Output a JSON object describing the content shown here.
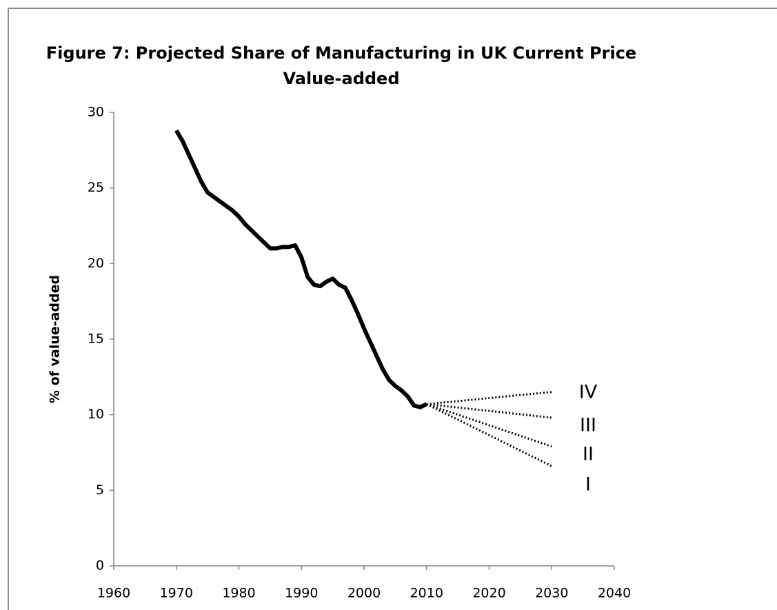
{
  "chart_data": {
    "type": "line",
    "title": [
      "Figure 7: Projected Share of Manufacturing in UK Current Price",
      "Value-added"
    ],
    "y_label": "% of value-added",
    "xlim": [
      1960,
      2040
    ],
    "xticks": [
      1960,
      1970,
      1980,
      1990,
      2000,
      2010,
      2020,
      2030,
      2040
    ],
    "ylim": [
      0,
      30
    ],
    "yticks": [
      0,
      5,
      10,
      15,
      20,
      25,
      30
    ],
    "grid": false,
    "series": [
      {
        "color": "#000000",
        "style": "solid",
        "x": [
          1970,
          1971,
          1972,
          1973,
          1974,
          1975,
          1976,
          1977,
          1978,
          1979,
          1980,
          1981,
          1982,
          1983,
          1984,
          1985,
          1986,
          1987,
          1988,
          1989,
          1990,
          1991,
          1992,
          1993,
          1994,
          1995,
          1996,
          1997,
          1998,
          1999,
          2000,
          2001,
          2002,
          2003,
          2004,
          2005,
          2006,
          2007,
          2008,
          2009,
          2010
        ],
        "values": [
          28.8,
          28.1,
          27.2,
          26.3,
          25.4,
          24.7,
          24.4,
          24.1,
          23.8,
          23.5,
          23.1,
          22.6,
          22.2,
          21.8,
          21.4,
          21.0,
          21.0,
          21.1,
          21.1,
          21.2,
          20.4,
          19.1,
          18.6,
          18.5,
          18.8,
          19.0,
          18.6,
          18.4,
          17.6,
          16.7,
          15.7,
          14.8,
          13.9,
          13.0,
          12.3,
          11.9,
          11.6,
          11.2,
          10.6,
          10.5,
          10.7
        ]
      },
      {
        "name": "IV",
        "color": "#000000",
        "style": "dotted",
        "x": [
          2010,
          2030
        ],
        "values": [
          10.7,
          11.5
        ]
      },
      {
        "name": "III",
        "color": "#000000",
        "style": "dotted",
        "x": [
          2010,
          2030
        ],
        "values": [
          10.7,
          9.8
        ]
      },
      {
        "name": "II",
        "color": "#000000",
        "style": "dotted",
        "x": [
          2010,
          2030
        ],
        "values": [
          10.7,
          7.9
        ]
      },
      {
        "name": "I",
        "color": "#000000",
        "style": "dotted",
        "x": [
          2010,
          2030
        ],
        "values": [
          10.7,
          6.6
        ]
      }
    ]
  }
}
